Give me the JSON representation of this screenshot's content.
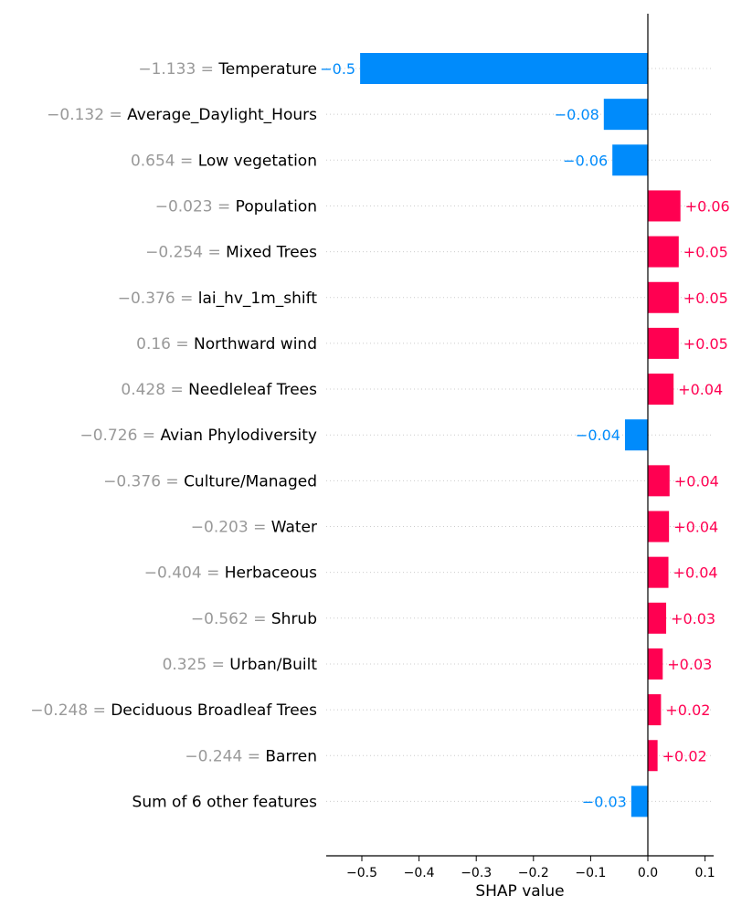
{
  "chart_data": {
    "type": "bar",
    "orientation": "horizontal",
    "xlabel": "SHAP value",
    "xlim": [
      -0.56,
      0.115
    ],
    "xticks": [
      -0.5,
      -0.4,
      -0.3,
      -0.2,
      -0.1,
      0.0,
      0.1
    ],
    "xtick_labels": [
      "−0.5",
      "−0.4",
      "−0.3",
      "−0.2",
      "−0.1",
      "0.0",
      "0.1"
    ],
    "colors": {
      "positive": "#ff0051",
      "negative": "#008bfb",
      "feature_value": "#999999",
      "feature_name": "#000000",
      "grid": "#cccccc",
      "axis": "#000000"
    },
    "features": [
      {
        "value_text": "−1.133",
        "name": "Temperature",
        "shap": -0.503,
        "label": "−0.5"
      },
      {
        "value_text": "−0.132",
        "name": "Average_Daylight_Hours",
        "shap": -0.077,
        "label": "−0.08"
      },
      {
        "value_text": "0.654",
        "name": "Low vegetation",
        "shap": -0.062,
        "label": "−0.06"
      },
      {
        "value_text": "−0.023",
        "name": "Population",
        "shap": 0.057,
        "label": "+0.06"
      },
      {
        "value_text": "−0.254",
        "name": "Mixed Trees",
        "shap": 0.054,
        "label": "+0.05"
      },
      {
        "value_text": "−0.376",
        "name": "lai_hv_1m_shift",
        "shap": 0.054,
        "label": "+0.05"
      },
      {
        "value_text": "0.16",
        "name": "Northward wind",
        "shap": 0.054,
        "label": "+0.05"
      },
      {
        "value_text": "0.428",
        "name": "Needleleaf Trees",
        "shap": 0.045,
        "label": "+0.04"
      },
      {
        "value_text": "−0.726",
        "name": "Avian Phylodiversity",
        "shap": -0.04,
        "label": "−0.04"
      },
      {
        "value_text": "−0.376",
        "name": "Culture/Managed",
        "shap": 0.038,
        "label": "+0.04"
      },
      {
        "value_text": "−0.203",
        "name": "Water",
        "shap": 0.037,
        "label": "+0.04"
      },
      {
        "value_text": "−0.404",
        "name": "Herbaceous",
        "shap": 0.036,
        "label": "+0.04"
      },
      {
        "value_text": "−0.562",
        "name": "Shrub",
        "shap": 0.032,
        "label": "+0.03"
      },
      {
        "value_text": "0.325",
        "name": "Urban/Built",
        "shap": 0.026,
        "label": "+0.03"
      },
      {
        "value_text": "−0.248",
        "name": "Deciduous Broadleaf Trees",
        "shap": 0.023,
        "label": "+0.02"
      },
      {
        "value_text": "−0.244",
        "name": "Barren",
        "shap": 0.017,
        "label": "+0.02"
      },
      {
        "value_text": "",
        "name": "Sum of 6 other features",
        "shap": -0.029,
        "label": "−0.03"
      }
    ]
  }
}
